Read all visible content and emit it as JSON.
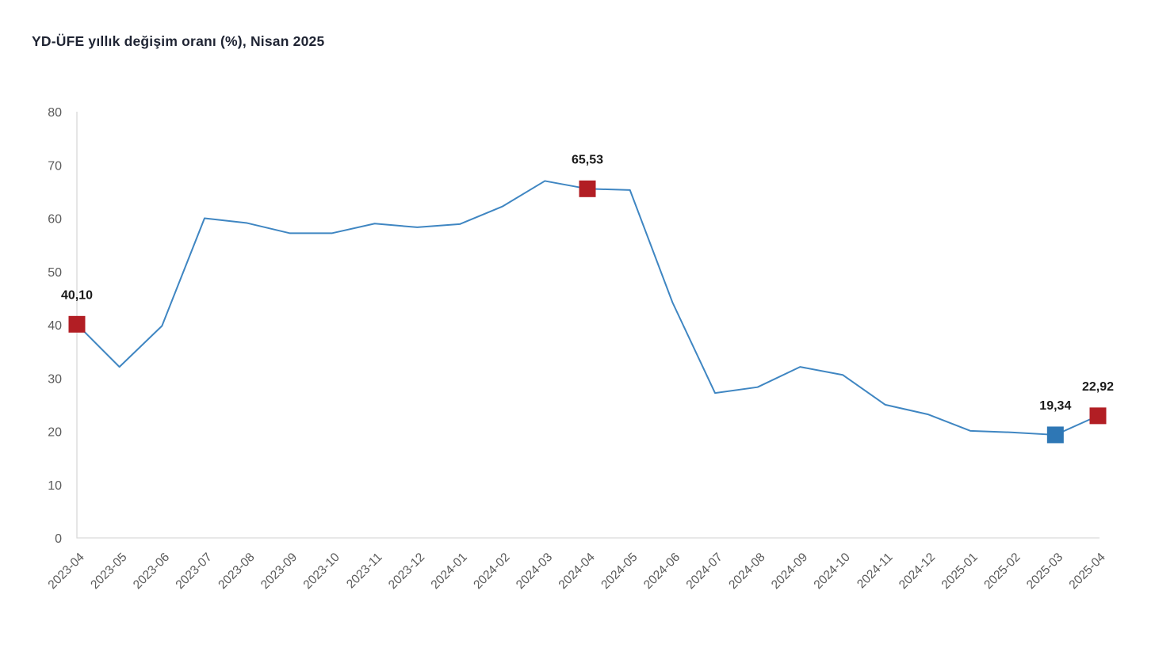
{
  "title": "YD-ÜFE yıllık değişim oranı (%), Nisan 2025",
  "chart_data": {
    "type": "line",
    "title": "YD-ÜFE yıllık değişim oranı (%), Nisan 2025",
    "x": [
      "2023-04",
      "2023-05",
      "2023-06",
      "2023-07",
      "2023-08",
      "2023-09",
      "2023-10",
      "2023-11",
      "2023-12",
      "2024-01",
      "2024-02",
      "2024-03",
      "2024-04",
      "2024-05",
      "2024-06",
      "2024-07",
      "2024-08",
      "2024-09",
      "2024-10",
      "2024-11",
      "2024-12",
      "2025-01",
      "2025-02",
      "2025-03",
      "2025-04"
    ],
    "values": [
      40.1,
      32.1,
      39.8,
      60.0,
      59.1,
      57.2,
      57.2,
      59.0,
      58.3,
      58.9,
      62.2,
      67.0,
      65.53,
      65.3,
      44.2,
      27.2,
      28.3,
      32.1,
      30.6,
      25.0,
      23.2,
      20.1,
      19.8,
      19.34,
      22.92
    ],
    "highlighted_points": [
      {
        "index": 0,
        "x": "2023-04",
        "value": 40.1,
        "label": "40,10",
        "color": "#b21e24"
      },
      {
        "index": 12,
        "x": "2024-04",
        "value": 65.53,
        "label": "65,53",
        "color": "#b21e24"
      },
      {
        "index": 23,
        "x": "2025-03",
        "value": 19.34,
        "label": "19,34",
        "color": "#2e77b5"
      },
      {
        "index": 24,
        "x": "2025-04",
        "value": 22.92,
        "label": "22,92",
        "color": "#b21e24"
      }
    ],
    "xlabel": "",
    "ylabel": "",
    "ylim": [
      0,
      80
    ],
    "ytick_step": 10,
    "yticks": [
      "0",
      "10",
      "20",
      "30",
      "40",
      "50",
      "60",
      "70",
      "80"
    ],
    "grid": false,
    "legend": "none",
    "decimal_separator": ",",
    "colors": {
      "line": "#3f86c2",
      "marker_red": "#b21e24",
      "marker_blue": "#2e77b5",
      "axis": "#d9d9d9",
      "tick_text": "#595959",
      "label_text": "#1a1a1a",
      "title_text": "#1f2433"
    }
  }
}
